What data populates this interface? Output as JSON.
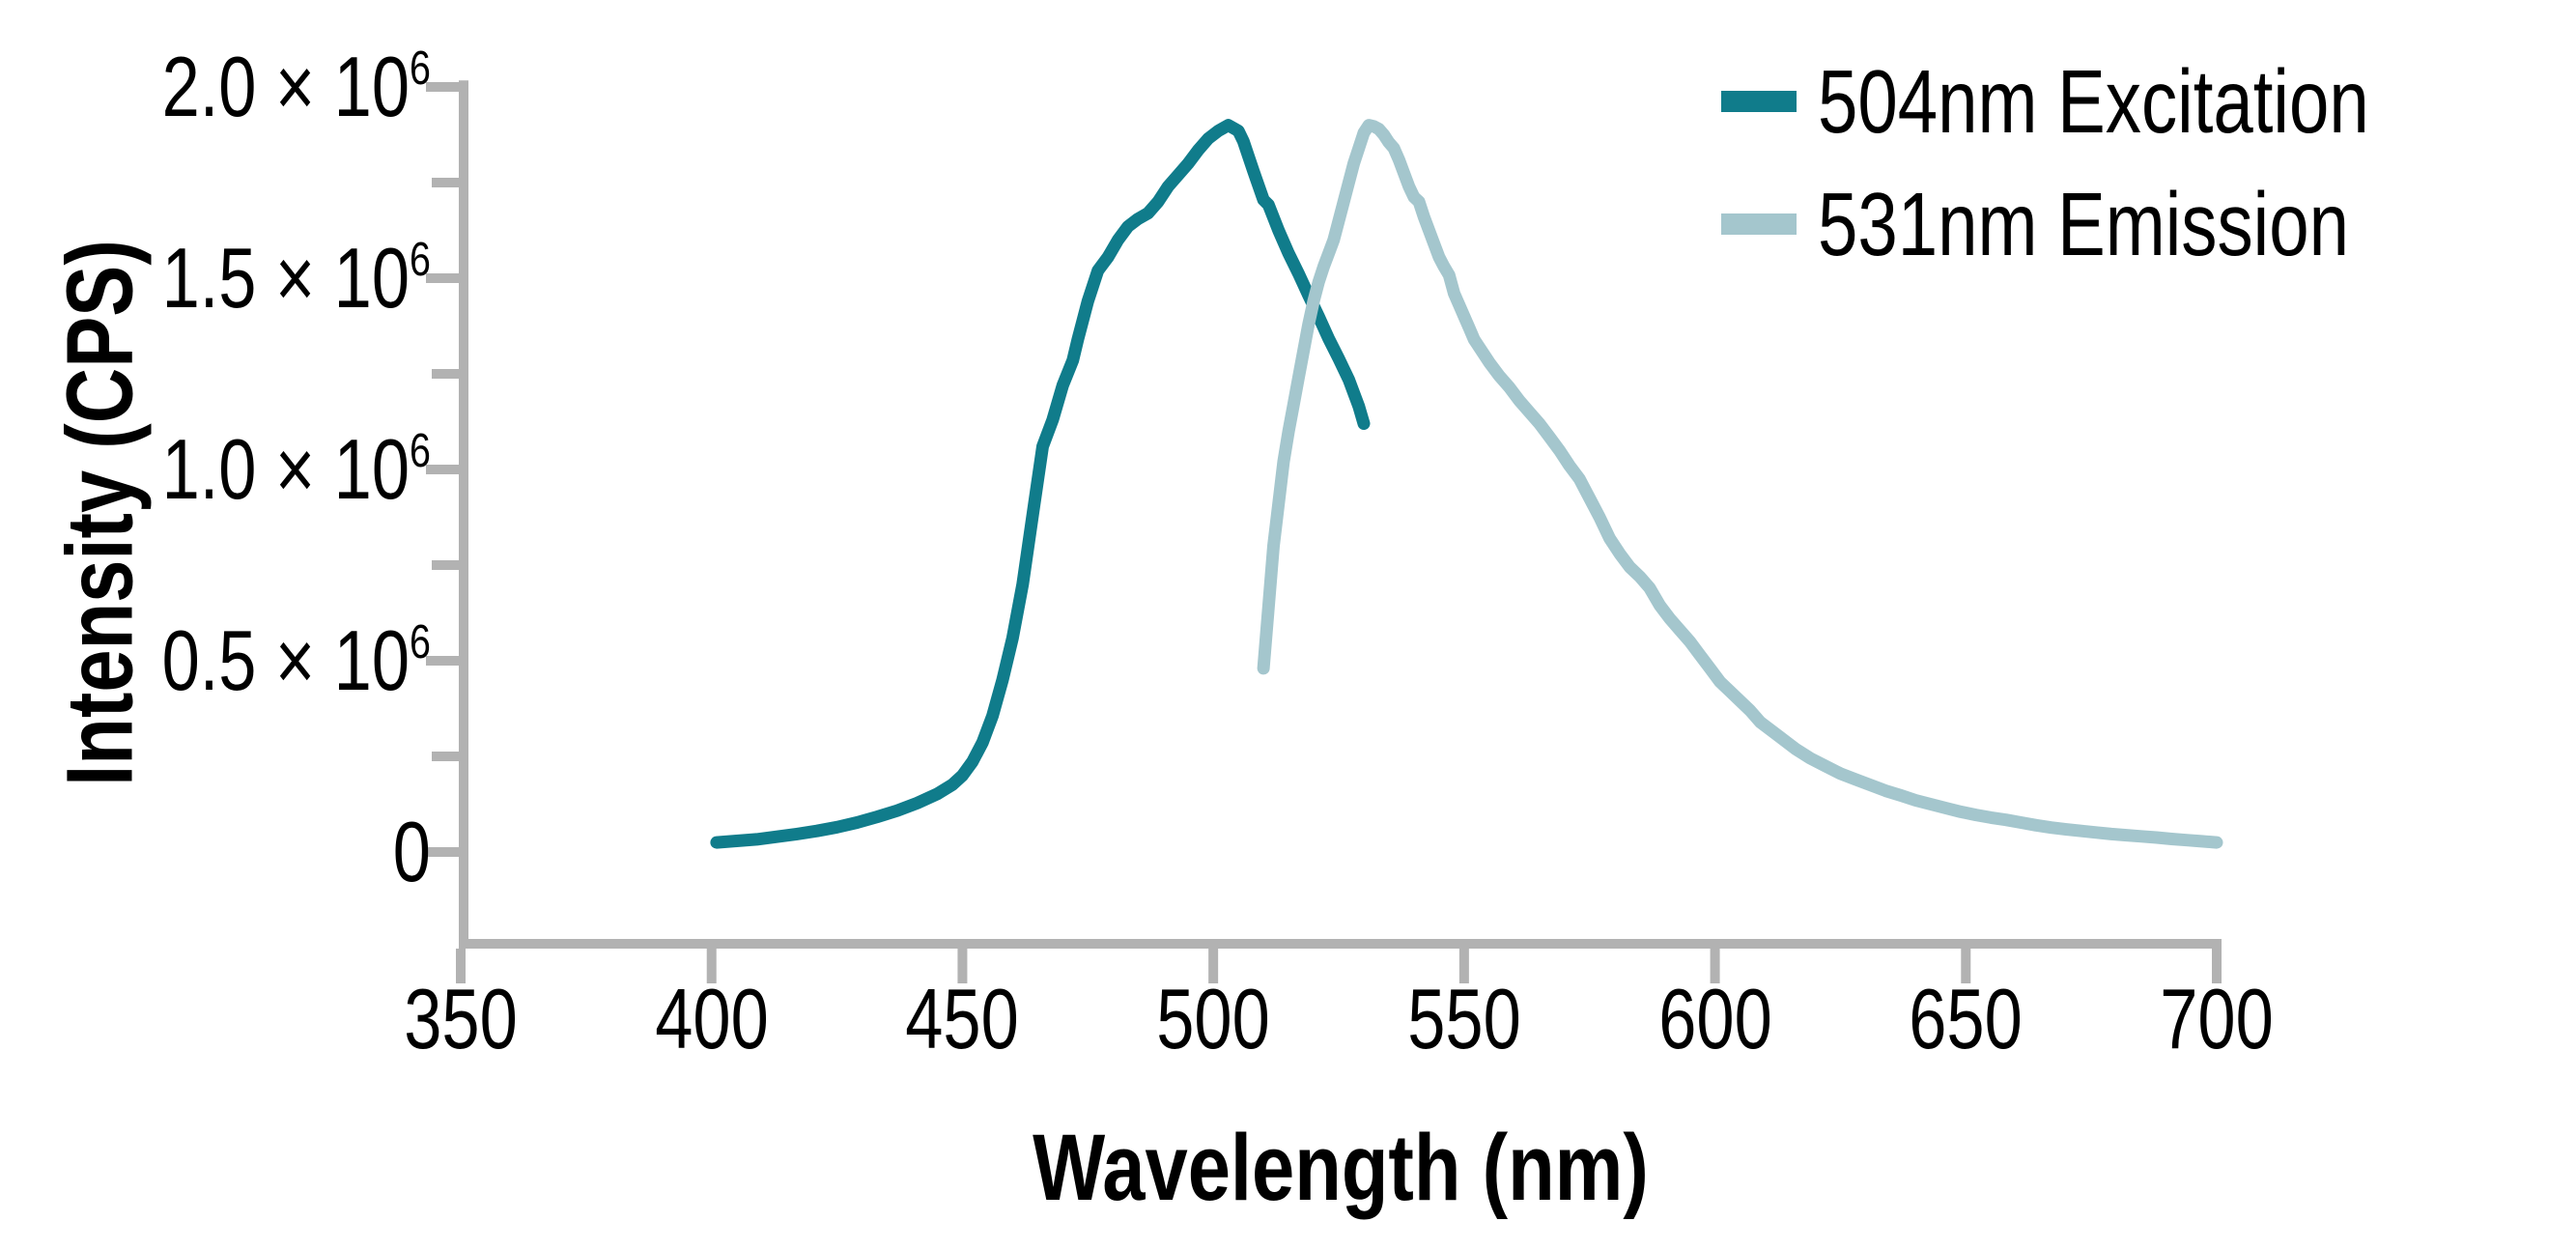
{
  "chart_data": {
    "type": "line",
    "title": "",
    "xlabel": "Wavelength (nm)",
    "ylabel": "Intensity (CPS)",
    "xlim": [
      350,
      700
    ],
    "ylim": [
      -240000,
      2017000
    ],
    "grid": false,
    "legend_position": "top-right",
    "axis_color": "#b2b2b2",
    "text_color": "#000000",
    "x_ticks": [
      350,
      400,
      450,
      500,
      550,
      600,
      650,
      700
    ],
    "y_major_ticks": [
      {
        "value": 0,
        "base": "0",
        "exp": ""
      },
      {
        "value": 500000,
        "base": "0.5 × 10",
        "exp": "6"
      },
      {
        "value": 1000000,
        "base": "1.0 × 10",
        "exp": "6"
      },
      {
        "value": 1500000,
        "base": "1.5 × 10",
        "exp": "6"
      },
      {
        "value": 2000000,
        "base": "2.0 × 10",
        "exp": "6"
      }
    ],
    "y_minor_ticks": [
      250000,
      750000,
      1250000,
      1750000
    ],
    "series": [
      {
        "id": "excitation",
        "name": "504nm Excitation",
        "color": "#107c8b",
        "peak_nm": 504,
        "points": [
          [
            401,
            25000
          ],
          [
            405,
            29000
          ],
          [
            409,
            33000
          ],
          [
            413,
            40000
          ],
          [
            417,
            47000
          ],
          [
            421,
            55000
          ],
          [
            425,
            65000
          ],
          [
            429,
            77000
          ],
          [
            433,
            92000
          ],
          [
            437,
            108000
          ],
          [
            441,
            128000
          ],
          [
            445,
            152000
          ],
          [
            448,
            176000
          ],
          [
            450,
            200000
          ],
          [
            452,
            236000
          ],
          [
            454,
            286000
          ],
          [
            456,
            356000
          ],
          [
            458,
            450000
          ],
          [
            460,
            560000
          ],
          [
            462,
            700000
          ],
          [
            464,
            880000
          ],
          [
            466,
            1060000
          ],
          [
            468,
            1130000
          ],
          [
            470,
            1220000
          ],
          [
            472,
            1285000
          ],
          [
            473,
            1340000
          ],
          [
            475,
            1440000
          ],
          [
            477,
            1520000
          ],
          [
            479,
            1555000
          ],
          [
            481,
            1600000
          ],
          [
            483,
            1635000
          ],
          [
            485,
            1655000
          ],
          [
            487,
            1670000
          ],
          [
            489,
            1700000
          ],
          [
            491,
            1740000
          ],
          [
            493,
            1770000
          ],
          [
            495,
            1800000
          ],
          [
            497,
            1835000
          ],
          [
            499,
            1865000
          ],
          [
            501,
            1885000
          ],
          [
            503,
            1900000
          ],
          [
            505,
            1885000
          ],
          [
            506,
            1858000
          ],
          [
            508,
            1780000
          ],
          [
            510,
            1705000
          ],
          [
            511,
            1692000
          ],
          [
            513,
            1625000
          ],
          [
            515,
            1565000
          ],
          [
            517,
            1512000
          ],
          [
            519,
            1455000
          ],
          [
            521,
            1400000
          ],
          [
            523,
            1342000
          ],
          [
            525,
            1290000
          ],
          [
            527,
            1235000
          ],
          [
            529,
            1165000
          ],
          [
            530,
            1120000
          ]
        ]
      },
      {
        "id": "emission",
        "name": "531nm Emission",
        "color": "#a4c6cd",
        "peak_nm": 531,
        "points": [
          [
            510,
            480000
          ],
          [
            511,
            640000
          ],
          [
            512,
            800000
          ],
          [
            513,
            910000
          ],
          [
            514,
            1020000
          ],
          [
            515,
            1100000
          ],
          [
            516,
            1170000
          ],
          [
            517,
            1240000
          ],
          [
            518,
            1310000
          ],
          [
            519,
            1380000
          ],
          [
            520,
            1440000
          ],
          [
            521,
            1490000
          ],
          [
            522,
            1530000
          ],
          [
            523,
            1565000
          ],
          [
            524,
            1600000
          ],
          [
            525,
            1650000
          ],
          [
            526,
            1700000
          ],
          [
            527,
            1750000
          ],
          [
            528,
            1800000
          ],
          [
            529,
            1840000
          ],
          [
            530,
            1880000
          ],
          [
            531,
            1900000
          ],
          [
            532,
            1897000
          ],
          [
            533,
            1890000
          ],
          [
            534,
            1875000
          ],
          [
            535,
            1855000
          ],
          [
            536,
            1840000
          ],
          [
            537,
            1810000
          ],
          [
            538,
            1775000
          ],
          [
            539,
            1740000
          ],
          [
            540,
            1712000
          ],
          [
            541,
            1700000
          ],
          [
            542,
            1660000
          ],
          [
            543,
            1625000
          ],
          [
            544,
            1590000
          ],
          [
            545,
            1555000
          ],
          [
            546,
            1530000
          ],
          [
            547,
            1508000
          ],
          [
            548,
            1460000
          ],
          [
            549,
            1430000
          ],
          [
            550,
            1400000
          ],
          [
            551,
            1370000
          ],
          [
            552,
            1340000
          ],
          [
            553,
            1320000
          ],
          [
            555,
            1280000
          ],
          [
            557,
            1245000
          ],
          [
            559,
            1215000
          ],
          [
            561,
            1180000
          ],
          [
            563,
            1150000
          ],
          [
            565,
            1120000
          ],
          [
            567,
            1085000
          ],
          [
            569,
            1050000
          ],
          [
            571,
            1010000
          ],
          [
            573,
            975000
          ],
          [
            575,
            925000
          ],
          [
            577,
            875000
          ],
          [
            579,
            820000
          ],
          [
            581,
            780000
          ],
          [
            583,
            745000
          ],
          [
            585,
            720000
          ],
          [
            587,
            690000
          ],
          [
            589,
            645000
          ],
          [
            591,
            610000
          ],
          [
            593,
            580000
          ],
          [
            595,
            550000
          ],
          [
            597,
            515000
          ],
          [
            599,
            480000
          ],
          [
            601,
            445000
          ],
          [
            603,
            420000
          ],
          [
            605,
            395000
          ],
          [
            607,
            370000
          ],
          [
            609,
            340000
          ],
          [
            611,
            320000
          ],
          [
            613,
            300000
          ],
          [
            616,
            270000
          ],
          [
            619,
            245000
          ],
          [
            622,
            225000
          ],
          [
            625,
            205000
          ],
          [
            628,
            190000
          ],
          [
            631,
            175000
          ],
          [
            634,
            160000
          ],
          [
            637,
            148000
          ],
          [
            640,
            135000
          ],
          [
            643,
            125000
          ],
          [
            646,
            115000
          ],
          [
            649,
            105000
          ],
          [
            652,
            97000
          ],
          [
            655,
            90000
          ],
          [
            658,
            84000
          ],
          [
            661,
            77000
          ],
          [
            664,
            70000
          ],
          [
            667,
            64000
          ],
          [
            670,
            59000
          ],
          [
            673,
            55000
          ],
          [
            676,
            51000
          ],
          [
            679,
            47000
          ],
          [
            682,
            44000
          ],
          [
            685,
            41000
          ],
          [
            688,
            38000
          ],
          [
            691,
            34000
          ],
          [
            694,
            31000
          ],
          [
            697,
            28000
          ],
          [
            700,
            25000
          ]
        ]
      }
    ]
  }
}
